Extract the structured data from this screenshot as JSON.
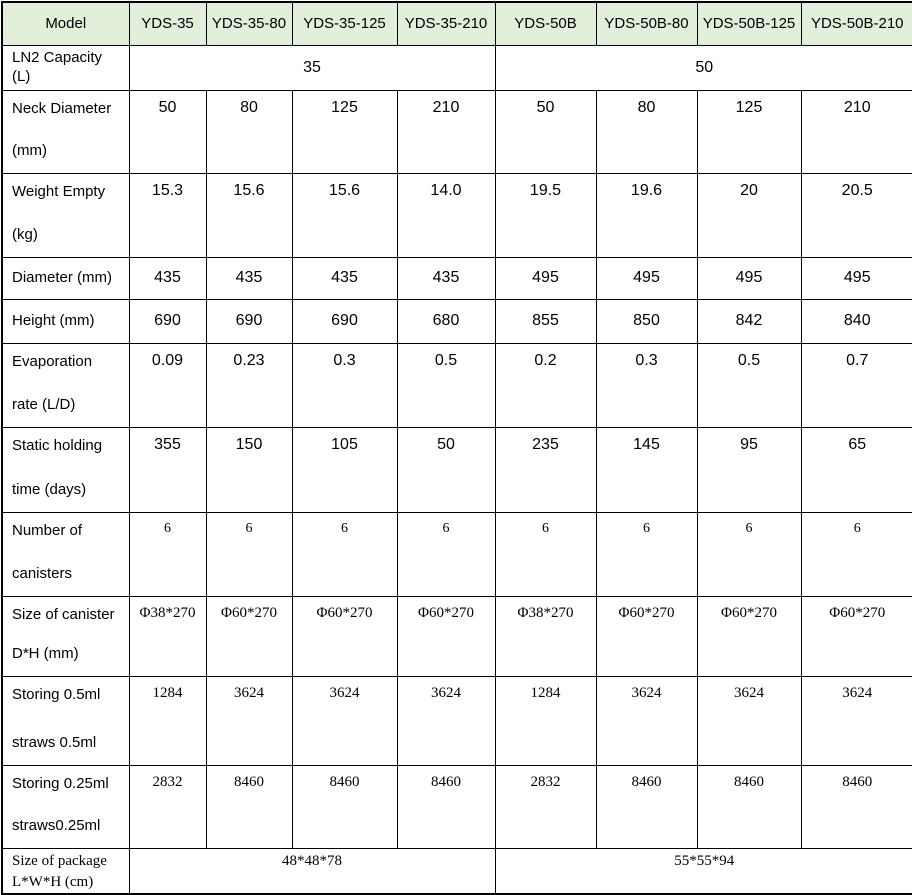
{
  "table": {
    "header": {
      "bg_color": "#e2efda",
      "cells": [
        "Model",
        "YDS-35",
        "YDS-35-80",
        "YDS-35-125",
        "YDS-35-210",
        "YDS-50B",
        "YDS-50B-80",
        "YDS-50B-125",
        "YDS-50B-210"
      ]
    },
    "rows": [
      {
        "label_lines": [
          "LN2 Capacity (L)"
        ],
        "cells": [
          {
            "text": "35",
            "colspan": 4
          },
          {
            "text": "50",
            "colspan": 4
          }
        ]
      },
      {
        "label_lines": [
          "Neck Diameter",
          "(mm)"
        ],
        "cells": [
          {
            "text": "50"
          },
          {
            "text": "80"
          },
          {
            "text": "125"
          },
          {
            "text": "210"
          },
          {
            "text": "50"
          },
          {
            "text": "80"
          },
          {
            "text": "125"
          },
          {
            "text": "210"
          }
        ]
      },
      {
        "label_lines": [
          "Weight Empty",
          "(kg)"
        ],
        "cells": [
          {
            "text": "15.3"
          },
          {
            "text": "15.6"
          },
          {
            "text": "15.6"
          },
          {
            "text": "14.0"
          },
          {
            "text": "19.5"
          },
          {
            "text": "19.6"
          },
          {
            "text": "20"
          },
          {
            "text": "20.5"
          }
        ]
      },
      {
        "label_lines": [
          "Diameter (mm)"
        ],
        "cells": [
          {
            "text": "435"
          },
          {
            "text": "435"
          },
          {
            "text": "435"
          },
          {
            "text": "435"
          },
          {
            "text": "495"
          },
          {
            "text": "495"
          },
          {
            "text": "495"
          },
          {
            "text": "495"
          }
        ]
      },
      {
        "label_lines": [
          "Height (mm)"
        ],
        "cells": [
          {
            "text": "690"
          },
          {
            "text": "690"
          },
          {
            "text": "690"
          },
          {
            "text": "680"
          },
          {
            "text": "855"
          },
          {
            "text": "850"
          },
          {
            "text": "842"
          },
          {
            "text": "840"
          }
        ]
      },
      {
        "label_lines": [
          "Evaporation",
          "rate (L/D)"
        ],
        "cells": [
          {
            "text": "0.09"
          },
          {
            "text": "0.23"
          },
          {
            "text": "0.3"
          },
          {
            "text": "0.5"
          },
          {
            "text": "0.2"
          },
          {
            "text": "0.3"
          },
          {
            "text": "0.5"
          },
          {
            "text": "0.7"
          }
        ]
      },
      {
        "label_lines": [
          "Static holding",
          "time (days)"
        ],
        "cells": [
          {
            "text": "355"
          },
          {
            "text": "150"
          },
          {
            "text": "105"
          },
          {
            "text": "50"
          },
          {
            "text": "235"
          },
          {
            "text": "145"
          },
          {
            "text": "95"
          },
          {
            "text": "65"
          }
        ]
      },
      {
        "label_lines": [
          "Number of",
          "canisters"
        ],
        "cells": [
          {
            "text": "6"
          },
          {
            "text": "6"
          },
          {
            "text": "6"
          },
          {
            "text": "6"
          },
          {
            "text": "6"
          },
          {
            "text": "6"
          },
          {
            "text": "6"
          },
          {
            "text": "6"
          }
        ]
      },
      {
        "label_lines": [
          "Size of canister",
          "D*H (mm)"
        ],
        "cells": [
          {
            "text": "Φ38*270"
          },
          {
            "text": "Φ60*270"
          },
          {
            "text": "Φ60*270"
          },
          {
            "text": "Φ60*270"
          },
          {
            "text": "Φ38*270"
          },
          {
            "text": "Φ60*270"
          },
          {
            "text": "Φ60*270"
          },
          {
            "text": "Φ60*270"
          }
        ]
      },
      {
        "label_lines": [
          "Storing 0.5ml",
          "straws 0.5ml"
        ],
        "cells": [
          {
            "text": "1284"
          },
          {
            "text": "3624"
          },
          {
            "text": "3624"
          },
          {
            "text": "3624"
          },
          {
            "text": "1284"
          },
          {
            "text": "3624"
          },
          {
            "text": "3624"
          },
          {
            "text": "3624"
          }
        ]
      },
      {
        "label_lines": [
          "Storing 0.25ml",
          "straws0.25ml"
        ],
        "cells": [
          {
            "text": "2832"
          },
          {
            "text": "8460"
          },
          {
            "text": "8460"
          },
          {
            "text": "8460"
          },
          {
            "text": "2832"
          },
          {
            "text": "8460"
          },
          {
            "text": "8460"
          },
          {
            "text": "8460"
          }
        ]
      },
      {
        "label_lines": [
          "Size of package",
          "L*W*H (cm)"
        ],
        "cells": [
          {
            "text": "48*48*78",
            "colspan": 4
          },
          {
            "text": "55*55*94",
            "colspan": 4
          }
        ]
      }
    ]
  }
}
